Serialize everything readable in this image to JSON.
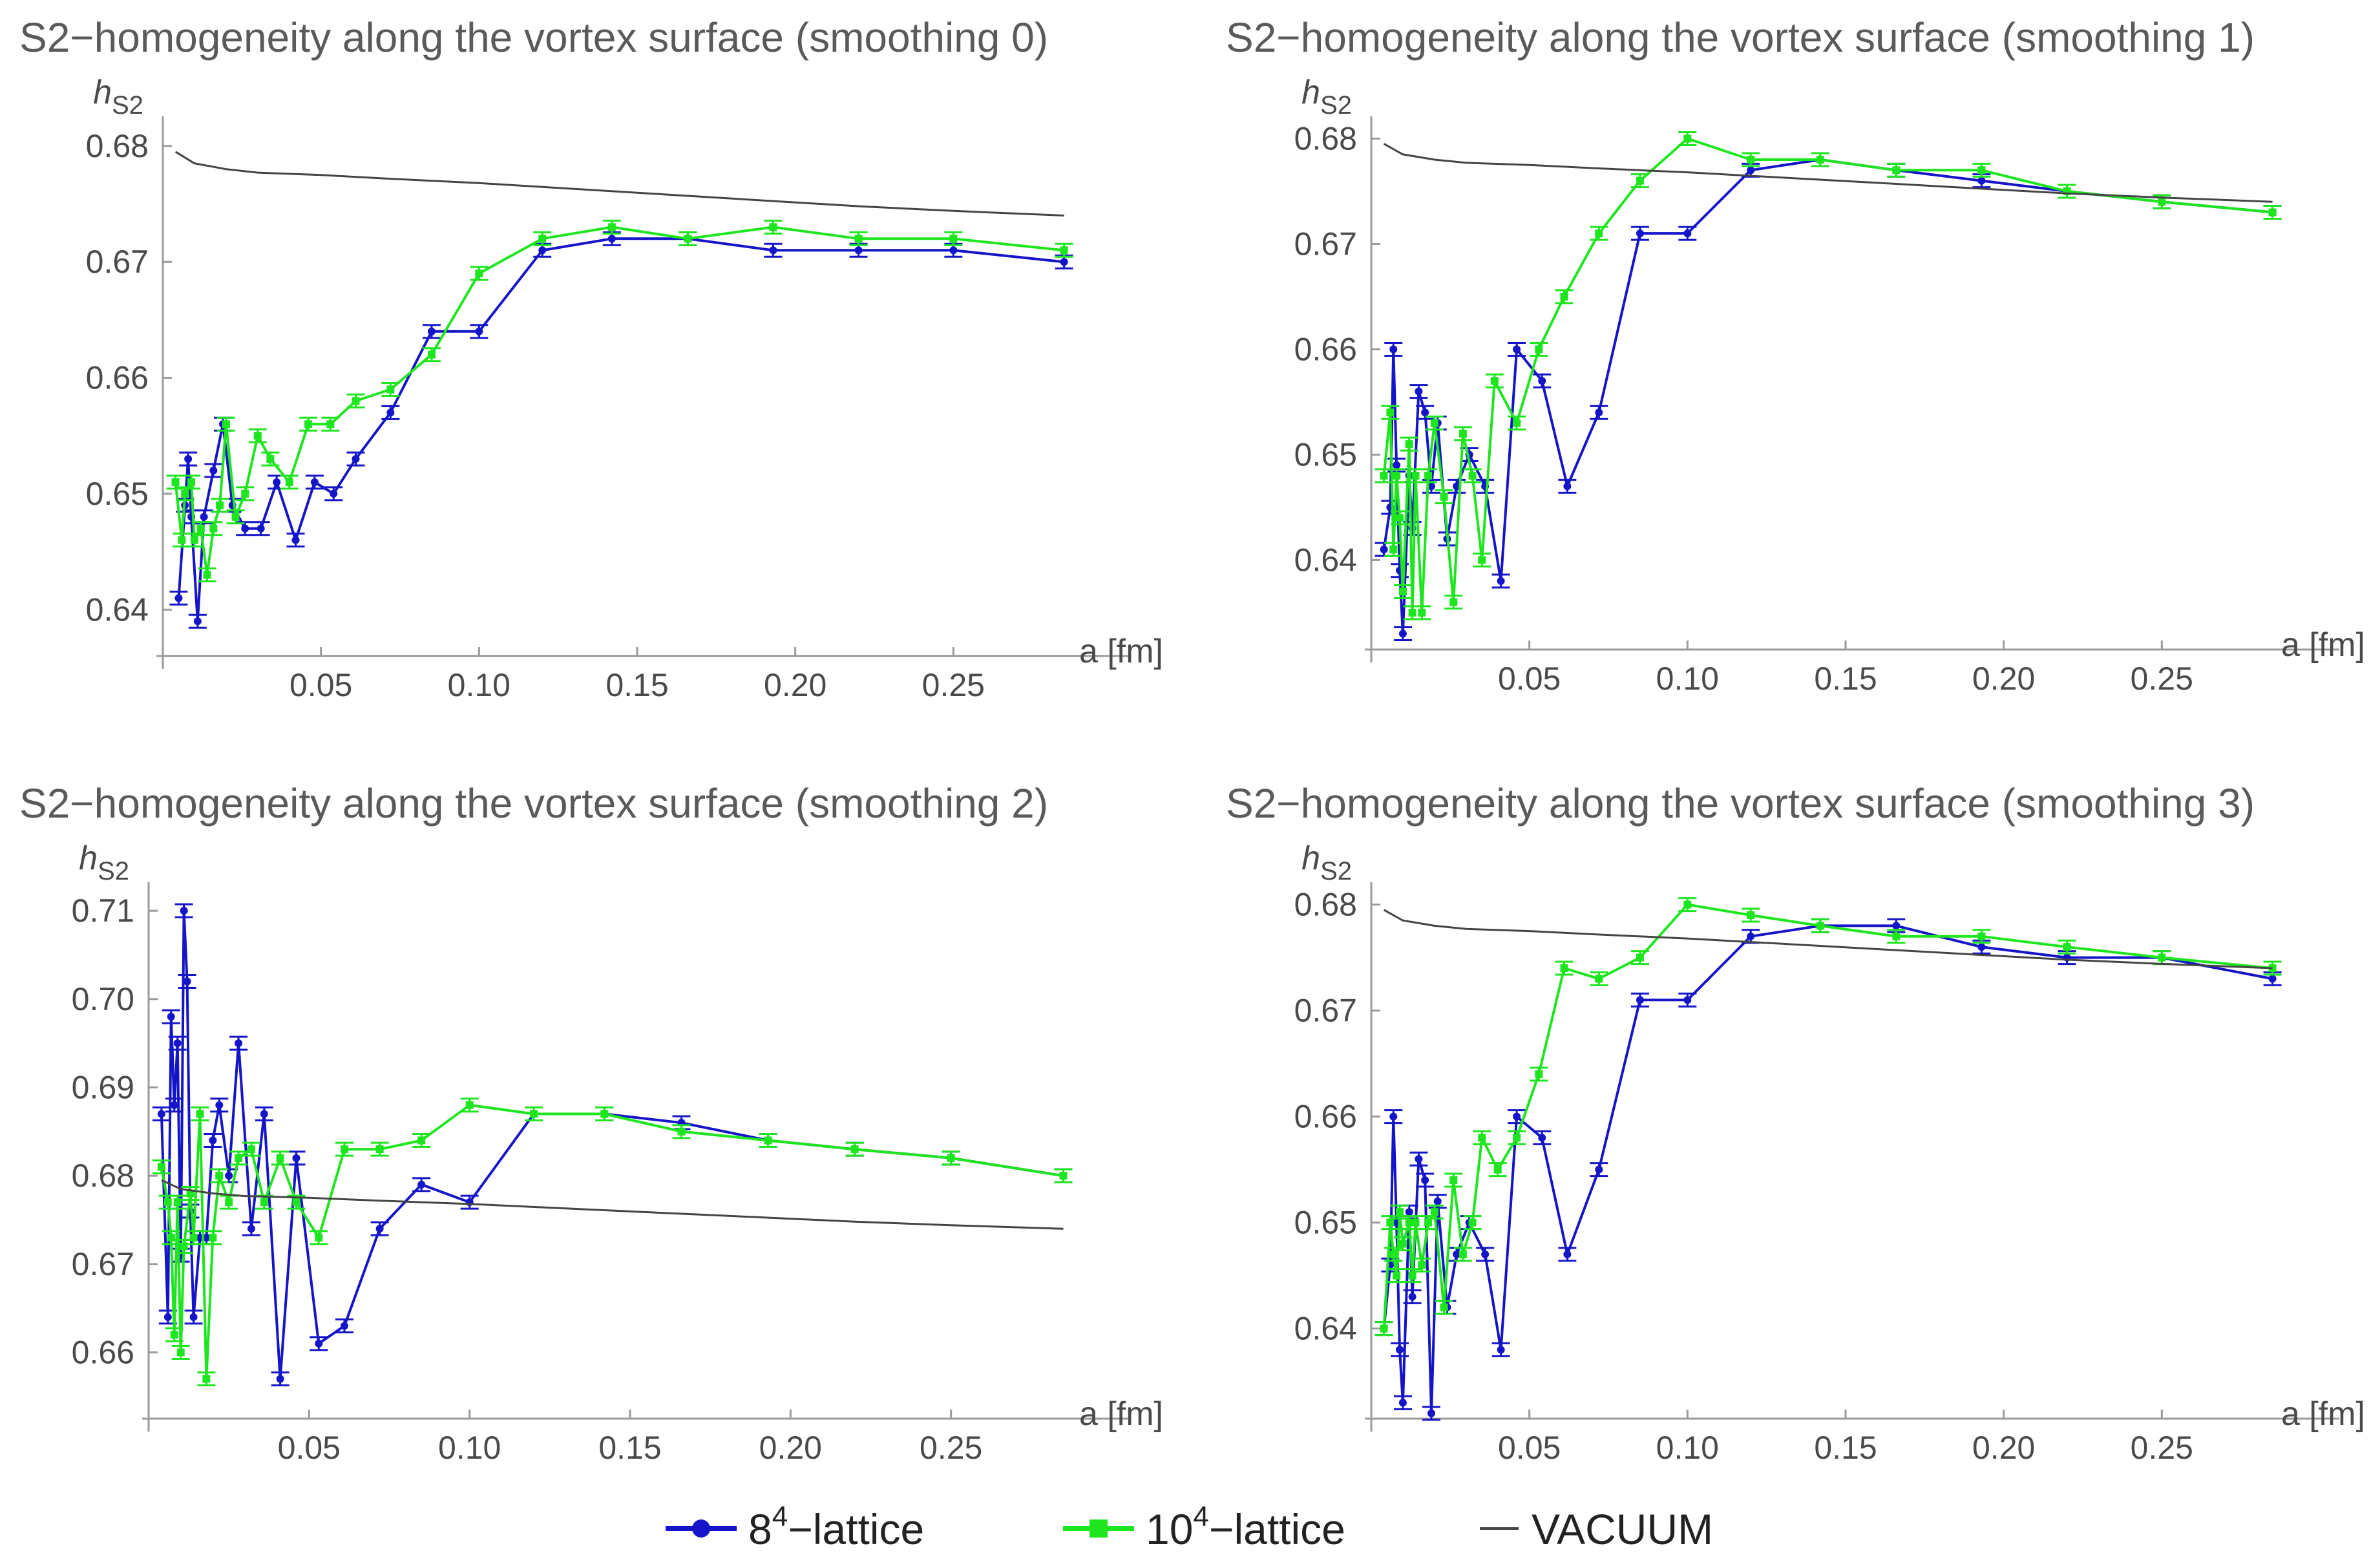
{
  "legend": {
    "items": [
      {
        "base": "8",
        "sup": "4",
        "rest": "−lattice",
        "color": "#1414c8"
      },
      {
        "base": "10",
        "sup": "4",
        "rest": "−lattice",
        "color": "#1ee61e"
      },
      {
        "base": "VACUUM",
        "sup": "",
        "rest": "",
        "color": "#444444"
      }
    ]
  },
  "chart_data": [
    {
      "type": "line",
      "title": "S2−homogeneity along the vortex surface (smoothing 0)",
      "ylabel_base": "h",
      "ylabel_sub": "S2",
      "xlabel": "a [fm]",
      "xlim": [
        0,
        0.3
      ],
      "ylim": [
        0.636,
        0.682
      ],
      "xticks": [
        "0.05",
        "0.10",
        "0.15",
        "0.20",
        "0.25"
      ],
      "xtick_values": [
        0.05,
        0.1,
        0.15,
        0.2,
        0.25
      ],
      "yticks": [
        "0.64",
        "0.65",
        "0.66",
        "0.67",
        "0.68"
      ],
      "ytick_values": [
        0.64,
        0.65,
        0.66,
        0.67,
        0.68
      ],
      "series": [
        {
          "name": "8^4-lattice",
          "x": [
            0.005,
            0.007,
            0.008,
            0.009,
            0.011,
            0.013,
            0.016,
            0.019,
            0.022,
            0.026,
            0.031,
            0.036,
            0.042,
            0.048,
            0.054,
            0.061,
            0.072,
            0.085,
            0.1,
            0.12,
            0.142,
            0.166,
            0.193,
            0.22,
            0.25,
            0.285
          ],
          "y": [
            0.641,
            0.649,
            0.653,
            0.648,
            0.639,
            0.648,
            0.652,
            0.656,
            0.649,
            0.647,
            0.647,
            0.651,
            0.646,
            0.651,
            0.65,
            0.653,
            0.657,
            0.664,
            0.664,
            0.671,
            0.672,
            0.672,
            0.671,
            0.671,
            0.671,
            0.67
          ]
        },
        {
          "name": "10^4-lattice",
          "x": [
            0.004,
            0.006,
            0.007,
            0.009,
            0.01,
            0.012,
            0.014,
            0.016,
            0.018,
            0.02,
            0.023,
            0.026,
            0.03,
            0.034,
            0.04,
            0.046,
            0.053,
            0.061,
            0.072,
            0.085,
            0.1,
            0.12,
            0.142,
            0.166,
            0.193,
            0.22,
            0.25,
            0.285
          ],
          "y": [
            0.651,
            0.646,
            0.65,
            0.651,
            0.646,
            0.647,
            0.643,
            0.647,
            0.649,
            0.656,
            0.648,
            0.65,
            0.655,
            0.653,
            0.651,
            0.656,
            0.656,
            0.658,
            0.659,
            0.662,
            0.669,
            0.672,
            0.673,
            0.672,
            0.673,
            0.672,
            0.672,
            0.671
          ]
        },
        {
          "name": "VACUUM",
          "x": [
            0.004,
            0.01,
            0.02,
            0.03,
            0.05,
            0.07,
            0.1,
            0.13,
            0.16,
            0.19,
            0.22,
            0.25,
            0.285
          ],
          "y": [
            0.6795,
            0.6785,
            0.678,
            0.6777,
            0.6775,
            0.6772,
            0.6768,
            0.6763,
            0.6758,
            0.6753,
            0.6748,
            0.6744,
            0.674
          ]
        }
      ]
    },
    {
      "type": "line",
      "title": "S2−homogeneity along the vortex surface (smoothing 1)",
      "ylabel_base": "h",
      "ylabel_sub": "S2",
      "xlabel": "a [fm]",
      "xlim": [
        0,
        0.3
      ],
      "ylim": [
        0.6315,
        0.6815
      ],
      "xticks": [
        "0.05",
        "0.10",
        "0.15",
        "0.20",
        "0.25"
      ],
      "xtick_values": [
        0.05,
        0.1,
        0.15,
        0.2,
        0.25
      ],
      "yticks": [
        "0.64",
        "0.65",
        "0.66",
        "0.67",
        "0.68"
      ],
      "ytick_values": [
        0.64,
        0.65,
        0.66,
        0.67,
        0.68
      ],
      "series": [
        {
          "name": "8^4-lattice",
          "x": [
            0.004,
            0.006,
            0.007,
            0.008,
            0.009,
            0.01,
            0.012,
            0.013,
            0.015,
            0.017,
            0.019,
            0.021,
            0.024,
            0.027,
            0.031,
            0.036,
            0.041,
            0.046,
            0.054,
            0.062,
            0.072,
            0.085,
            0.1,
            0.12,
            0.142,
            0.166,
            0.193,
            0.22,
            0.25,
            0.285
          ],
          "y": [
            0.641,
            0.645,
            0.66,
            0.649,
            0.639,
            0.633,
            0.648,
            0.643,
            0.656,
            0.654,
            0.647,
            0.653,
            0.642,
            0.647,
            0.65,
            0.647,
            0.638,
            0.66,
            0.657,
            0.647,
            0.654,
            0.671,
            0.671,
            0.677,
            0.678,
            0.677,
            0.676,
            0.675,
            0.674,
            0.673
          ]
        },
        {
          "name": "10^4-lattice",
          "x": [
            0.004,
            0.006,
            0.007,
            0.008,
            0.009,
            0.01,
            0.012,
            0.013,
            0.014,
            0.016,
            0.018,
            0.02,
            0.023,
            0.026,
            0.029,
            0.032,
            0.035,
            0.039,
            0.046,
            0.053,
            0.061,
            0.072,
            0.085,
            0.1,
            0.12,
            0.142,
            0.166,
            0.193,
            0.22,
            0.25,
            0.285
          ],
          "y": [
            0.648,
            0.654,
            0.641,
            0.648,
            0.644,
            0.637,
            0.651,
            0.635,
            0.648,
            0.635,
            0.648,
            0.653,
            0.646,
            0.636,
            0.652,
            0.648,
            0.64,
            0.657,
            0.653,
            0.66,
            0.665,
            0.671,
            0.676,
            0.68,
            0.678,
            0.678,
            0.677,
            0.677,
            0.675,
            0.674,
            0.673
          ]
        },
        {
          "name": "VACUUM",
          "x": [
            0.004,
            0.01,
            0.02,
            0.03,
            0.05,
            0.07,
            0.1,
            0.13,
            0.16,
            0.19,
            0.22,
            0.25,
            0.285
          ],
          "y": [
            0.6795,
            0.6785,
            0.678,
            0.6777,
            0.6775,
            0.6772,
            0.6768,
            0.6763,
            0.6758,
            0.6753,
            0.6748,
            0.6744,
            0.674
          ]
        }
      ]
    },
    {
      "type": "line",
      "title": "S2−homogeneity along the vortex surface (smoothing 2)",
      "ylabel_base": "h",
      "ylabel_sub": "S2",
      "xlabel": "a [fm]",
      "xlim": [
        0,
        0.3
      ],
      "ylim": [
        0.6525,
        0.7125
      ],
      "xticks": [
        "0.05",
        "0.10",
        "0.15",
        "0.20",
        "0.25"
      ],
      "xtick_values": [
        0.05,
        0.1,
        0.15,
        0.2,
        0.25
      ],
      "yticks": [
        "0.66",
        "0.67",
        "0.68",
        "0.69",
        "0.70",
        "0.71"
      ],
      "ytick_values": [
        0.66,
        0.67,
        0.68,
        0.69,
        0.7,
        0.71
      ],
      "series": [
        {
          "name": "8^4-lattice",
          "x": [
            0.004,
            0.006,
            0.007,
            0.008,
            0.009,
            0.01,
            0.011,
            0.012,
            0.013,
            0.014,
            0.016,
            0.018,
            0.02,
            0.022,
            0.025,
            0.028,
            0.032,
            0.036,
            0.041,
            0.046,
            0.053,
            0.061,
            0.072,
            0.085,
            0.1,
            0.12,
            0.142,
            0.166,
            0.193,
            0.22,
            0.25,
            0.285
          ],
          "y": [
            0.687,
            0.664,
            0.698,
            0.688,
            0.695,
            0.671,
            0.71,
            0.702,
            0.676,
            0.664,
            0.673,
            0.673,
            0.684,
            0.688,
            0.68,
            0.695,
            0.674,
            0.687,
            0.657,
            0.682,
            0.661,
            0.663,
            0.674,
            0.679,
            0.677,
            0.687,
            0.687,
            0.686,
            0.684,
            0.683,
            0.682,
            0.68
          ]
        },
        {
          "name": "10^4-lattice",
          "x": [
            0.004,
            0.006,
            0.007,
            0.008,
            0.009,
            0.01,
            0.011,
            0.013,
            0.014,
            0.016,
            0.018,
            0.02,
            0.022,
            0.025,
            0.028,
            0.032,
            0.036,
            0.041,
            0.046,
            0.053,
            0.061,
            0.072,
            0.085,
            0.1,
            0.12,
            0.142,
            0.166,
            0.193,
            0.22,
            0.25,
            0.285
          ],
          "y": [
            0.681,
            0.677,
            0.673,
            0.662,
            0.677,
            0.66,
            0.672,
            0.678,
            0.673,
            0.687,
            0.657,
            0.673,
            0.68,
            0.677,
            0.682,
            0.683,
            0.677,
            0.682,
            0.677,
            0.673,
            0.683,
            0.683,
            0.684,
            0.688,
            0.687,
            0.687,
            0.685,
            0.684,
            0.683,
            0.682,
            0.68
          ]
        },
        {
          "name": "VACUUM",
          "x": [
            0.004,
            0.01,
            0.02,
            0.03,
            0.05,
            0.07,
            0.1,
            0.13,
            0.16,
            0.19,
            0.22,
            0.25,
            0.285
          ],
          "y": [
            0.6795,
            0.6785,
            0.678,
            0.6777,
            0.6775,
            0.6772,
            0.6768,
            0.6763,
            0.6758,
            0.6753,
            0.6748,
            0.6744,
            0.674
          ]
        }
      ]
    },
    {
      "type": "line",
      "title": "S2−homogeneity along the vortex surface (smoothing 3)",
      "ylabel_base": "h",
      "ylabel_sub": "S2",
      "xlabel": "a [fm]",
      "xlim": [
        0,
        0.3
      ],
      "ylim": [
        0.6315,
        0.6815
      ],
      "xticks": [
        "0.05",
        "0.10",
        "0.15",
        "0.20",
        "0.25"
      ],
      "xtick_values": [
        0.05,
        0.1,
        0.15,
        0.2,
        0.25
      ],
      "yticks": [
        "0.64",
        "0.65",
        "0.66",
        "0.67",
        "0.68"
      ],
      "ytick_values": [
        0.64,
        0.65,
        0.66,
        0.67,
        0.68
      ],
      "series": [
        {
          "name": "8^4-lattice",
          "x": [
            0.004,
            0.006,
            0.007,
            0.008,
            0.009,
            0.01,
            0.012,
            0.013,
            0.015,
            0.017,
            0.019,
            0.021,
            0.024,
            0.027,
            0.031,
            0.036,
            0.041,
            0.046,
            0.054,
            0.062,
            0.072,
            0.085,
            0.1,
            0.12,
            0.142,
            0.166,
            0.193,
            0.22,
            0.25,
            0.285
          ],
          "y": [
            0.64,
            0.646,
            0.66,
            0.65,
            0.638,
            0.633,
            0.651,
            0.643,
            0.656,
            0.654,
            0.632,
            0.652,
            0.642,
            0.647,
            0.65,
            0.647,
            0.638,
            0.66,
            0.658,
            0.647,
            0.655,
            0.671,
            0.671,
            0.677,
            0.678,
            0.678,
            0.676,
            0.675,
            0.675,
            0.673
          ]
        },
        {
          "name": "10^4-lattice",
          "x": [
            0.004,
            0.006,
            0.007,
            0.008,
            0.009,
            0.01,
            0.012,
            0.013,
            0.014,
            0.016,
            0.018,
            0.02,
            0.023,
            0.026,
            0.029,
            0.032,
            0.035,
            0.04,
            0.046,
            0.053,
            0.061,
            0.072,
            0.085,
            0.1,
            0.12,
            0.142,
            0.166,
            0.193,
            0.22,
            0.25,
            0.285
          ],
          "y": [
            0.64,
            0.65,
            0.647,
            0.645,
            0.651,
            0.648,
            0.65,
            0.645,
            0.65,
            0.646,
            0.65,
            0.651,
            0.642,
            0.654,
            0.647,
            0.65,
            0.658,
            0.655,
            0.658,
            0.664,
            0.674,
            0.673,
            0.675,
            0.68,
            0.679,
            0.678,
            0.677,
            0.677,
            0.676,
            0.675,
            0.674
          ]
        },
        {
          "name": "VACUUM",
          "x": [
            0.004,
            0.01,
            0.02,
            0.03,
            0.05,
            0.07,
            0.1,
            0.13,
            0.16,
            0.19,
            0.22,
            0.25,
            0.285
          ],
          "y": [
            0.6795,
            0.6785,
            0.678,
            0.6777,
            0.6775,
            0.6772,
            0.6768,
            0.6763,
            0.6758,
            0.6753,
            0.6748,
            0.6744,
            0.674
          ]
        }
      ]
    }
  ]
}
